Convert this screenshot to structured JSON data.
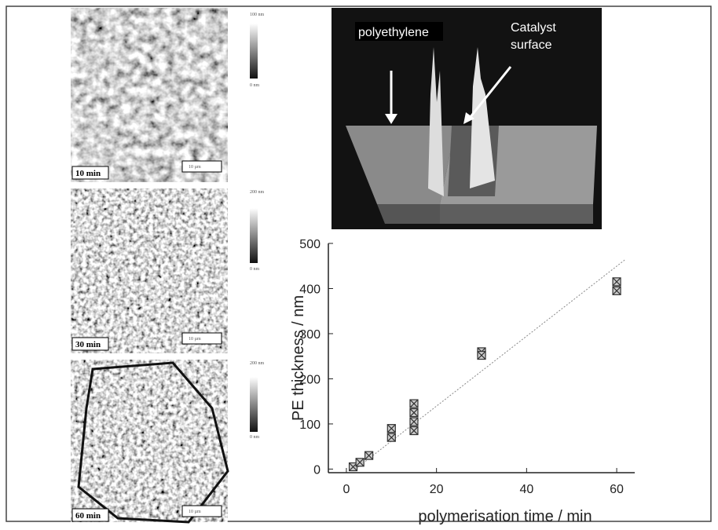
{
  "panels": [
    {
      "time_label": "10 min",
      "scale_label": "10 µm",
      "colorbar": [
        "100 nm",
        "0 nm"
      ]
    },
    {
      "time_label": "30 min",
      "scale_label": "10 µm",
      "colorbar": [
        "200 nm",
        "0 nm"
      ]
    },
    {
      "time_label": "60 min",
      "scale_label": "10 µm",
      "colorbar": [
        "200 nm",
        "0 nm"
      ]
    }
  ],
  "surface_image": {
    "labels": [
      "polyethylene",
      [
        "Catalyst",
        "surface"
      ]
    ]
  },
  "chart_data": {
    "type": "scatter",
    "x_label": "polymerisation time / min",
    "y_label": "PE thickness / nm",
    "x": [
      1.5,
      3,
      5,
      10,
      10,
      15,
      15,
      15,
      15,
      30,
      30,
      60,
      60
    ],
    "values": [
      5,
      15,
      30,
      90,
      70,
      145,
      125,
      105,
      85,
      260,
      252,
      415,
      395
    ],
    "color": "#333333",
    "fit": {
      "x": [
        2,
        62
      ],
      "values": [
        0,
        465
      ]
    },
    "xlim": [
      -4,
      64
    ],
    "ylim": [
      -8,
      500
    ],
    "xticks": [
      0,
      20,
      40,
      60
    ],
    "yticks": [
      0,
      100,
      200,
      300,
      400,
      500
    ]
  }
}
